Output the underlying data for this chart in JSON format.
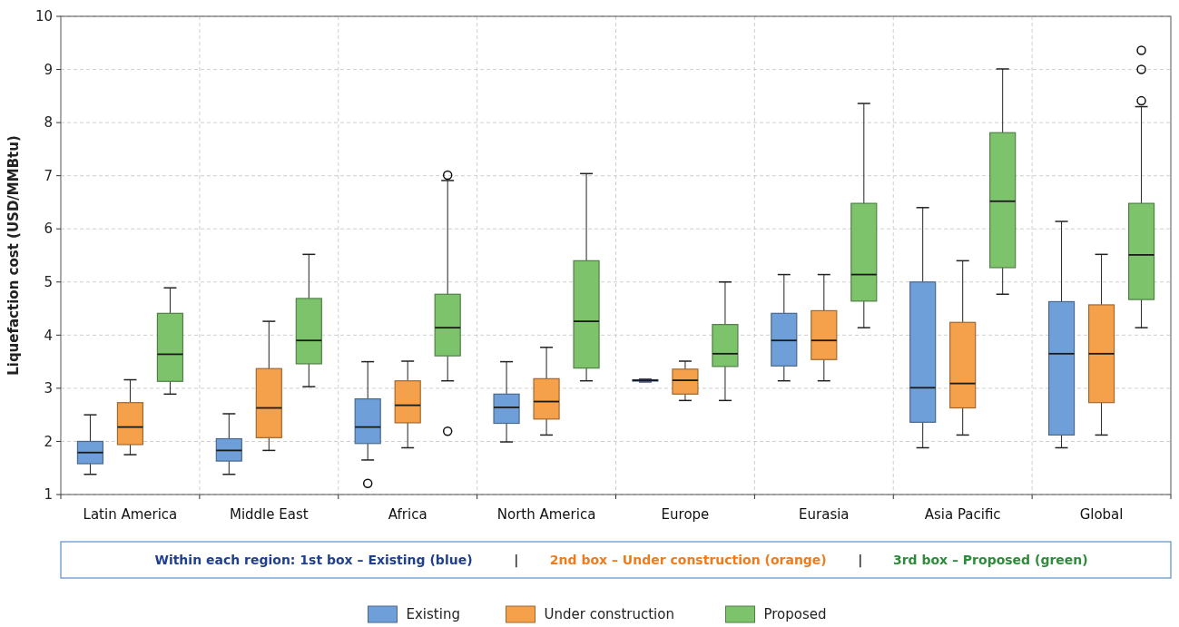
{
  "chart_data": {
    "type": "box",
    "ylabel": "Liquefaction cost (USD/MMBtu)",
    "categories": [
      "Latin America",
      "Middle East",
      "Africa",
      "North America",
      "Europe",
      "Eurasia",
      "Asia Pacific",
      "Global"
    ],
    "ylim": [
      1,
      10
    ],
    "yticks": [
      1,
      2,
      3,
      4,
      5,
      6,
      7,
      8,
      9,
      10
    ],
    "grid": true,
    "legend": "bottom",
    "annotations": [
      "Within each region: 1st box – Existing (blue)",
      "|",
      "2nd box – Under construction (orange)",
      "|",
      "3rd box – Proposed (green)"
    ],
    "series": [
      {
        "name": "Existing",
        "color": "#6f9fd8",
        "boxes": [
          {
            "low": 1.38,
            "q1": 1.58,
            "median": 1.79,
            "q3": 2.0,
            "high": 2.5
          },
          {
            "low": 1.38,
            "q1": 1.63,
            "median": 1.83,
            "q3": 2.05,
            "high": 2.52
          },
          {
            "low": 1.65,
            "q1": 1.96,
            "median": 2.27,
            "q3": 2.8,
            "high": 3.5,
            "outliers": [
              1.21
            ]
          },
          {
            "low": 1.99,
            "q1": 2.34,
            "median": 2.64,
            "q3": 2.89,
            "high": 3.5
          },
          {
            "low": 3.12,
            "q1": 3.14,
            "median": 3.15,
            "q3": 3.16,
            "high": 3.17
          },
          {
            "low": 3.14,
            "q1": 3.42,
            "median": 3.9,
            "q3": 4.41,
            "high": 5.14
          },
          {
            "low": 1.88,
            "q1": 2.36,
            "median": 3.01,
            "q3": 5.0,
            "high": 6.4
          },
          {
            "low": 1.88,
            "q1": 2.12,
            "median": 3.65,
            "q3": 4.63,
            "high": 6.14
          }
        ]
      },
      {
        "name": "Under construction",
        "color": "#f5a04a",
        "boxes": [
          {
            "low": 1.75,
            "q1": 1.94,
            "median": 2.27,
            "q3": 2.73,
            "high": 3.16
          },
          {
            "low": 1.83,
            "q1": 2.07,
            "median": 2.63,
            "q3": 3.37,
            "high": 4.26
          },
          {
            "low": 1.88,
            "q1": 2.35,
            "median": 2.68,
            "q3": 3.14,
            "high": 3.51
          },
          {
            "low": 2.12,
            "q1": 2.42,
            "median": 2.75,
            "q3": 3.18,
            "high": 3.77
          },
          {
            "low": 2.77,
            "q1": 2.89,
            "median": 3.15,
            "q3": 3.36,
            "high": 3.51
          },
          {
            "low": 3.14,
            "q1": 3.54,
            "median": 3.9,
            "q3": 4.46,
            "high": 5.14
          },
          {
            "low": 2.12,
            "q1": 2.63,
            "median": 3.09,
            "q3": 4.24,
            "high": 5.4
          },
          {
            "low": 2.12,
            "q1": 2.73,
            "median": 3.65,
            "q3": 4.57,
            "high": 5.52
          }
        ]
      },
      {
        "name": "Proposed",
        "color": "#7dc36b",
        "boxes": [
          {
            "low": 2.89,
            "q1": 3.13,
            "median": 3.64,
            "q3": 4.41,
            "high": 4.89
          },
          {
            "low": 3.03,
            "q1": 3.46,
            "median": 3.9,
            "q3": 4.69,
            "high": 5.52
          },
          {
            "low": 3.14,
            "q1": 3.61,
            "median": 4.14,
            "q3": 4.77,
            "high": 6.91,
            "outliers": [
              7.01,
              2.19
            ]
          },
          {
            "low": 3.14,
            "q1": 3.38,
            "median": 4.26,
            "q3": 5.4,
            "high": 7.04
          },
          {
            "low": 2.77,
            "q1": 3.41,
            "median": 3.65,
            "q3": 4.2,
            "high": 5.0
          },
          {
            "low": 4.14,
            "q1": 4.64,
            "median": 5.14,
            "q3": 6.48,
            "high": 8.36
          },
          {
            "low": 4.77,
            "q1": 5.27,
            "median": 6.52,
            "q3": 7.81,
            "high": 9.01
          },
          {
            "low": 4.14,
            "q1": 4.67,
            "median": 5.51,
            "q3": 6.48,
            "high": 8.3,
            "outliers": [
              9.36,
              9.0,
              8.41
            ]
          }
        ]
      }
    ]
  }
}
